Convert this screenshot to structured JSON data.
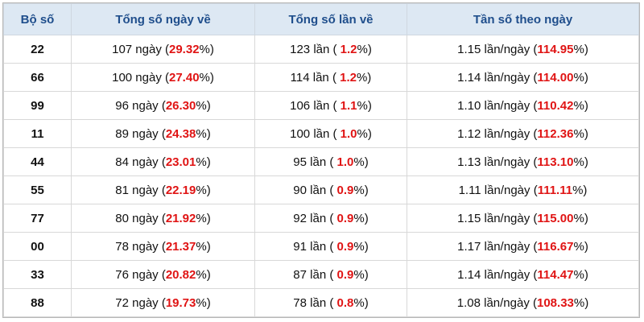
{
  "table": {
    "headers": [
      "Bộ số",
      "Tổng số ngày về",
      "Tổng số lần về",
      "Tần số theo ngày"
    ],
    "rows": [
      [
        "22",
        {
          "before": "107 ngày (",
          "red": "29.32",
          "after": "%)"
        },
        {
          "before": "123 lần ( ",
          "red": "1.2",
          "after": "%)"
        },
        {
          "before": "1.15 lần/ngày (",
          "red": "114.95",
          "after": "%)"
        }
      ],
      [
        "66",
        {
          "before": "100 ngày (",
          "red": "27.40",
          "after": "%)"
        },
        {
          "before": "114 lần ( ",
          "red": "1.2",
          "after": "%)"
        },
        {
          "before": "1.14 lần/ngày (",
          "red": "114.00",
          "after": "%)"
        }
      ],
      [
        "99",
        {
          "before": "96 ngày (",
          "red": "26.30",
          "after": "%)"
        },
        {
          "before": "106 lần ( ",
          "red": "1.1",
          "after": "%)"
        },
        {
          "before": "1.10 lần/ngày (",
          "red": "110.42",
          "after": "%)"
        }
      ],
      [
        "11",
        {
          "before": "89 ngày (",
          "red": "24.38",
          "after": "%)"
        },
        {
          "before": "100 lần ( ",
          "red": "1.0",
          "after": "%)"
        },
        {
          "before": "1.12 lần/ngày (",
          "red": "112.36",
          "after": "%)"
        }
      ],
      [
        "44",
        {
          "before": "84 ngày (",
          "red": "23.01",
          "after": "%)"
        },
        {
          "before": "95 lần ( ",
          "red": "1.0",
          "after": "%)"
        },
        {
          "before": "1.13 lần/ngày (",
          "red": "113.10",
          "after": "%)"
        }
      ],
      [
        "55",
        {
          "before": "81 ngày (",
          "red": "22.19",
          "after": "%)"
        },
        {
          "before": "90 lần ( ",
          "red": "0.9",
          "after": "%)"
        },
        {
          "before": "1.11 lần/ngày (",
          "red": "111.11",
          "after": "%)"
        }
      ],
      [
        "77",
        {
          "before": "80 ngày (",
          "red": "21.92",
          "after": "%)"
        },
        {
          "before": "92 lần ( ",
          "red": "0.9",
          "after": "%)"
        },
        {
          "before": "1.15 lần/ngày (",
          "red": "115.00",
          "after": "%)"
        }
      ],
      [
        "00",
        {
          "before": "78 ngày (",
          "red": "21.37",
          "after": "%)"
        },
        {
          "before": "91 lần ( ",
          "red": "0.9",
          "after": "%)"
        },
        {
          "before": "1.17 lần/ngày (",
          "red": "116.67",
          "after": "%)"
        }
      ],
      [
        "33",
        {
          "before": "76 ngày (",
          "red": "20.82",
          "after": "%)"
        },
        {
          "before": "87 lần ( ",
          "red": "0.9",
          "after": "%)"
        },
        {
          "before": "1.14 lần/ngày (",
          "red": "114.47",
          "after": "%)"
        }
      ],
      [
        "88",
        {
          "before": "72 ngày (",
          "red": "19.73",
          "after": "%)"
        },
        {
          "before": "78 lần ( ",
          "red": "0.8",
          "after": "%)"
        },
        {
          "before": "1.08 lần/ngày (",
          "red": "108.33",
          "after": "%)"
        }
      ]
    ]
  }
}
